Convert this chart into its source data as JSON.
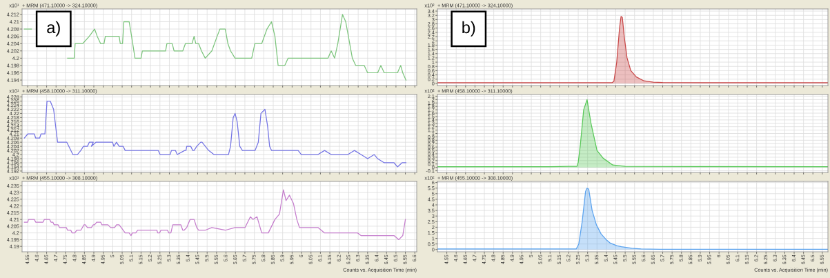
{
  "chart_data": [
    {
      "type": "line",
      "title": "+ MRM (471.10000 -> 324.10000)",
      "ylabel": "x10¹",
      "annotations": [
        "a)"
      ],
      "grid": true,
      "tick_labels": "y",
      "xlim": [
        4.52,
        6.61
      ],
      "xticks": [
        4.55,
        4.6,
        4.65,
        4.7,
        4.75,
        4.8,
        4.85,
        4.9,
        4.95,
        5,
        5.05,
        5.1,
        5.15,
        5.2,
        5.25,
        5.3,
        5.35,
        5.4,
        5.45,
        5.5,
        5.55,
        5.6,
        5.65,
        5.7,
        5.75,
        5.8,
        5.85,
        5.9,
        5.95,
        6,
        6.05,
        6.1,
        6.15,
        6.2,
        6.25,
        6.3,
        6.35,
        6.4,
        6.45,
        6.5,
        6.55,
        6.6
      ],
      "ylim": [
        4.1925,
        4.2135
      ],
      "yticks": [
        4.194,
        4.196,
        4.198,
        4.2,
        4.202,
        4.204,
        4.206,
        4.208,
        4.21,
        4.212
      ],
      "series": [
        {
          "color": "#7cc47c",
          "x": [
            4.532,
            4.57,
            4.58,
            4.761,
            4.796,
            4.801,
            4.841,
            4.876,
            4.904,
            4.918,
            4.936,
            4.954,
            4.961,
            5.034,
            5.04,
            5.052,
            5.059,
            5.087,
            5.1,
            5.118,
            5.15,
            5.157,
            5.28,
            5.287,
            5.315,
            5.325,
            5.371,
            5.385,
            5.42,
            5.431,
            5.44,
            5.455,
            5.47,
            5.49,
            5.525,
            5.553,
            5.568,
            5.596,
            5.61,
            5.624,
            5.648,
            5.736,
            5.753,
            5.789,
            5.817,
            5.841,
            5.859,
            5.876,
            5.911,
            5.929,
            6.14,
            6.157,
            6.175,
            6.192,
            6.217,
            6.234,
            6.255,
            6.269,
            6.287,
            6.332,
            6.35,
            6.403,
            6.42,
            6.438,
            6.508,
            6.525,
            6.536,
            6.553
          ],
          "values": [
            4.208,
            4.208,
            null,
            4.2,
            4.2,
            4.204,
            4.204,
            4.206,
            4.208,
            4.206,
            4.204,
            4.204,
            4.206,
            4.206,
            4.204,
            4.204,
            4.21,
            4.21,
            4.206,
            4.2,
            4.2,
            4.202,
            4.202,
            4.204,
            4.204,
            4.202,
            4.202,
            4.204,
            4.204,
            4.206,
            4.204,
            4.204,
            4.202,
            4.2,
            4.202,
            4.206,
            4.208,
            4.208,
            4.204,
            4.202,
            4.2,
            4.2,
            4.204,
            4.204,
            4.208,
            4.21,
            4.206,
            4.198,
            4.198,
            4.2,
            4.2,
            4.202,
            4.2,
            4.204,
            4.212,
            4.21,
            4.204,
            4.2,
            4.198,
            4.198,
            4.196,
            4.196,
            4.198,
            4.196,
            4.196,
            4.198,
            4.196,
            4.194
          ]
        }
      ]
    },
    {
      "type": "line",
      "title": "+ MRM (458.10000 -> 311.10000)",
      "ylabel": "x10¹",
      "grid": true,
      "tick_labels": "y",
      "xlim": [
        4.52,
        6.61
      ],
      "xticks": [
        4.55,
        4.6,
        4.65,
        4.7,
        4.75,
        4.8,
        4.85,
        4.9,
        4.95,
        5,
        5.05,
        5.1,
        5.15,
        5.2,
        5.25,
        5.3,
        5.35,
        5.4,
        5.45,
        5.5,
        5.55,
        5.6,
        5.65,
        5.7,
        5.75,
        5.8,
        5.85,
        5.9,
        5.95,
        6,
        6.05,
        6.1,
        6.15,
        6.2,
        6.25,
        6.3,
        6.35,
        6.4,
        6.45,
        6.5,
        6.55,
        6.6
      ],
      "ylim": [
        4.1913,
        4.2292
      ],
      "yticks": [
        4.192,
        4.194,
        4.196,
        4.198,
        4.2,
        4.202,
        4.204,
        4.206,
        4.208,
        4.21,
        4.212,
        4.214,
        4.216,
        4.218,
        4.22,
        4.222,
        4.224,
        4.226,
        4.228
      ],
      "series": [
        {
          "color": "#7474e4",
          "x": [
            4.532,
            4.55,
            4.585,
            4.592,
            4.613,
            4.62,
            4.641,
            4.652,
            4.669,
            4.687,
            4.708,
            4.715,
            4.757,
            4.789,
            4.813,
            4.831,
            4.845,
            4.866,
            4.876,
            4.897,
            4.887,
            4.911,
            4.999,
            5.006,
            5.02,
            5.034,
            5.055,
            5.066,
            5.241,
            5.251,
            5.304,
            5.311,
            5.332,
            5.342,
            5.381,
            5.388,
            5.392,
            5.413,
            5.424,
            5.431,
            5.445,
            5.466,
            5.473,
            5.508,
            5.536,
            5.613,
            5.624,
            5.638,
            5.648,
            5.659,
            5.673,
            5.687,
            5.754,
            5.771,
            5.785,
            5.806,
            5.82,
            5.831,
            5.841,
            5.982,
            5.999,
            6.087,
            6.122,
            6.157,
            6.245,
            6.28,
            6.315,
            6.35,
            6.385,
            6.403,
            6.438,
            6.49,
            6.508,
            6.532,
            6.553
          ],
          "values": [
            4.208,
            4.21,
            4.21,
            4.208,
            4.208,
            4.21,
            4.21,
            4.226,
            4.226,
            4.222,
            4.206,
            4.206,
            4.206,
            4.2,
            4.2,
            4.202,
            4.204,
            4.204,
            4.206,
            4.206,
            4.204,
            4.206,
            4.206,
            4.204,
            4.206,
            4.204,
            4.204,
            4.202,
            4.202,
            4.2,
            4.2,
            4.202,
            4.202,
            4.2,
            4.202,
            4.202,
            4.204,
            4.204,
            4.202,
            4.202,
            4.204,
            4.206,
            4.206,
            4.202,
            4.2,
            4.2,
            4.204,
            4.218,
            4.22,
            4.216,
            4.204,
            4.202,
            4.202,
            4.206,
            4.22,
            4.222,
            4.214,
            4.204,
            4.202,
            4.202,
            4.2,
            4.2,
            4.202,
            4.2,
            4.2,
            4.202,
            4.2,
            4.198,
            4.2,
            4.198,
            4.196,
            4.196,
            4.194,
            4.196,
            4.196
          ]
        }
      ]
    },
    {
      "type": "line",
      "title": "+ MRM (455.10000 -> 308.10000)",
      "ylabel": "x10¹",
      "xlabel": "Counts vs. Acquisition Time (min)",
      "grid": true,
      "xlim": [
        4.52,
        6.61
      ],
      "xticks": [
        4.55,
        4.6,
        4.65,
        4.7,
        4.75,
        4.8,
        4.85,
        4.9,
        4.95,
        5,
        5.05,
        5.1,
        5.15,
        5.2,
        5.25,
        5.3,
        5.35,
        5.4,
        5.45,
        5.5,
        5.55,
        5.6,
        5.65,
        5.7,
        5.75,
        5.8,
        5.85,
        5.9,
        5.95,
        6,
        6.05,
        6.1,
        6.15,
        6.2,
        6.25,
        6.3,
        6.35,
        6.4,
        6.45,
        6.5,
        6.55,
        6.6
      ],
      "ylim": [
        4.186,
        4.2382
      ],
      "yticks": [
        4.19,
        4.195,
        4.2,
        4.205,
        4.21,
        4.215,
        4.22,
        4.225,
        4.23,
        4.235
      ],
      "series": [
        {
          "color": "#c47ccc",
          "x": [
            4.532,
            4.55,
            4.554,
            4.585,
            4.592,
            4.631,
            4.638,
            4.666,
            4.673,
            4.683,
            4.69,
            4.711,
            4.718,
            4.754,
            4.761,
            4.778,
            4.785,
            4.799,
            4.81,
            4.831,
            4.848,
            4.855,
            4.866,
            4.887,
            4.897,
            4.904,
            4.915,
            4.936,
            4.943,
            4.975,
            4.989,
            5.01,
            5.02,
            5.034,
            5.045,
            5.066,
            5.087,
            5.097,
            5.104,
            5.122,
            5.132,
            5.234,
            5.238,
            5.248,
            5.255,
            5.29,
            5.297,
            5.308,
            5.318,
            5.361,
            5.371,
            5.378,
            5.392,
            5.41,
            5.431,
            5.445,
            5.455,
            5.49,
            5.525,
            5.596,
            5.648,
            5.701,
            5.729,
            5.743,
            5.764,
            5.789,
            5.824,
            5.859,
            5.883,
            5.904,
            5.918,
            5.936,
            5.957,
            5.975,
            5.989,
            6.087,
            6.122,
            6.297,
            6.315,
            6.49,
            6.515,
            6.536,
            6.55
          ],
          "values": [
            4.208,
            4.208,
            4.21,
            4.21,
            4.208,
            4.208,
            4.21,
            4.21,
            4.208,
            4.208,
            4.206,
            4.206,
            4.204,
            4.204,
            4.202,
            4.202,
            4.2,
            4.2,
            4.202,
            4.202,
            4.206,
            4.206,
            4.204,
            4.204,
            4.206,
            4.206,
            4.208,
            4.208,
            4.206,
            4.206,
            4.204,
            4.204,
            4.206,
            4.206,
            4.204,
            4.2,
            4.2,
            4.198,
            4.2,
            4.2,
            4.202,
            4.202,
            4.2,
            4.2,
            4.202,
            4.202,
            4.2,
            4.2,
            4.206,
            4.206,
            4.202,
            4.202,
            4.204,
            4.21,
            4.21,
            4.204,
            4.202,
            4.202,
            4.204,
            4.202,
            4.204,
            4.204,
            4.212,
            4.21,
            4.212,
            4.2,
            4.2,
            4.21,
            4.214,
            4.232,
            4.224,
            4.228,
            4.222,
            4.21,
            4.204,
            4.204,
            4.2,
            4.2,
            4.198,
            4.198,
            4.195,
            4.198,
            4.21
          ]
        }
      ]
    },
    {
      "type": "area",
      "title": "+ MRM (471.10000 -> 324.10000)",
      "ylabel": "x10²",
      "annotations": [
        "b)"
      ],
      "grid": true,
      "tick_labels": "y",
      "xlim": [
        4.5,
        6.58
      ],
      "xticks": [
        4.55,
        4.6,
        4.65,
        4.7,
        4.75,
        4.8,
        4.85,
        4.9,
        4.95,
        5,
        5.05,
        5.1,
        5.15,
        5.2,
        5.25,
        5.3,
        5.35,
        5.4,
        5.45,
        5.5,
        5.55,
        5.6,
        5.65,
        5.7,
        5.75,
        5.8,
        5.85,
        5.9,
        5.95,
        6,
        6.05,
        6.1,
        6.15,
        6.2,
        6.25,
        6.3,
        6.35,
        6.4,
        6.45,
        6.5,
        6.55
      ],
      "ylim": [
        -0.1,
        3.5
      ],
      "yticks": [
        0,
        0.2,
        0.4,
        0.6,
        0.8,
        1,
        1.2,
        1.4,
        1.6,
        1.8,
        2,
        2.2,
        2.4,
        2.6,
        2.8,
        3,
        3.2,
        3.4
      ],
      "series": [
        {
          "color": "#c84848",
          "x": [
            4.5,
            5.43,
            5.44,
            5.455,
            5.47,
            5.478,
            5.485,
            5.495,
            5.51,
            5.53,
            5.56,
            5.6,
            5.65,
            5.7,
            6.58
          ],
          "values": [
            0.03,
            0.03,
            0.1,
            1.0,
            2.6,
            3.15,
            3.1,
            2.2,
            1.2,
            0.6,
            0.3,
            0.12,
            0.06,
            0.04,
            0.03
          ]
        }
      ]
    },
    {
      "type": "area",
      "title": "+ MRM (458.10000 -> 311.10000)",
      "ylabel": "x10²",
      "grid": true,
      "tick_labels": "y",
      "xlim": [
        4.5,
        6.58
      ],
      "xticks": [
        4.55,
        4.6,
        4.65,
        4.7,
        4.75,
        4.8,
        4.85,
        4.9,
        4.95,
        5,
        5.05,
        5.1,
        5.15,
        5.2,
        5.25,
        5.3,
        5.35,
        5.4,
        5.45,
        5.5,
        5.55,
        5.6,
        5.65,
        5.7,
        5.75,
        5.8,
        5.85,
        5.9,
        5.95,
        6,
        6.05,
        6.1,
        6.15,
        6.2,
        6.25,
        6.3,
        6.35,
        6.4,
        6.45,
        6.5,
        6.55
      ],
      "ylim": [
        -0.15,
        2.15
      ],
      "yticks": [
        -0.1,
        0,
        0.1,
        0.2,
        0.3,
        0.4,
        0.5,
        0.6,
        0.7,
        0.8,
        0.9,
        1,
        1.1,
        1.2,
        1.3,
        1.4,
        1.5,
        1.6,
        1.7,
        1.8,
        1.9,
        2,
        2.1
      ],
      "series": [
        {
          "color": "#58c858",
          "x": [
            4.5,
            5.1,
            5.2,
            5.243,
            5.25,
            5.261,
            5.279,
            5.297,
            5.318,
            5.35,
            5.383,
            5.434,
            5.5,
            6.58
          ],
          "values": [
            0.02,
            0.02,
            0.03,
            0.03,
            0.15,
            0.65,
            1.7,
            2.0,
            1.3,
            0.5,
            0.27,
            0.07,
            0.03,
            0.02
          ]
        }
      ]
    },
    {
      "type": "area",
      "title": "+ MRM (455.10000 -> 308.10000)",
      "ylabel": "x10²",
      "xlabel": "Counts vs. Acquisition Time (min)",
      "grid": true,
      "xlim": [
        4.5,
        6.58
      ],
      "xticks": [
        4.55,
        4.6,
        4.65,
        4.7,
        4.75,
        4.8,
        4.85,
        4.9,
        4.95,
        5,
        5.05,
        5.1,
        5.15,
        5.2,
        5.25,
        5.3,
        5.35,
        5.4,
        5.45,
        5.5,
        5.55,
        5.6,
        5.65,
        5.7,
        5.75,
        5.8,
        5.85,
        5.9,
        5.95,
        6,
        6.05,
        6.1,
        6.15,
        6.2,
        6.25,
        6.3,
        6.35,
        6.4,
        6.45,
        6.5,
        6.55
      ],
      "ylim": [
        -0.2,
        6.1
      ],
      "yticks": [
        0,
        0.5,
        1,
        1.5,
        2,
        2.5,
        3,
        3.5,
        4,
        4.5,
        5,
        5.5,
        6
      ],
      "series": [
        {
          "color": "#5aa2ee",
          "x": [
            4.5,
            5.239,
            5.253,
            5.271,
            5.289,
            5.297,
            5.306,
            5.324,
            5.347,
            5.372,
            5.398,
            5.419,
            5.455,
            5.48,
            5.535,
            5.585,
            5.685,
            6.58
          ],
          "values": [
            0.05,
            0.05,
            0.5,
            2.5,
            5.2,
            5.5,
            5.4,
            3.5,
            2.2,
            1.4,
            0.9,
            0.6,
            0.35,
            0.25,
            0.12,
            0.06,
            0.03,
            0.03
          ]
        }
      ]
    }
  ]
}
